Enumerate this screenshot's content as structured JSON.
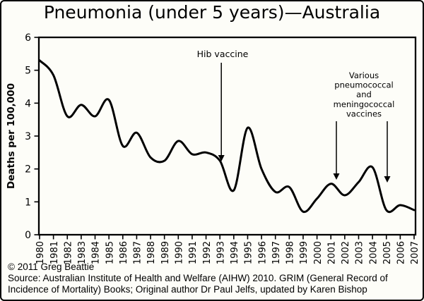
{
  "title": "Pneumonia (under 5 years)—Australia",
  "y_axis": {
    "label": "Deaths per 100,000",
    "ticks": [
      0,
      1,
      2,
      3,
      4,
      5,
      6
    ]
  },
  "annotations": {
    "hib": {
      "label": "Hib vaccine",
      "arrow_year": 1993
    },
    "various": {
      "lines": [
        "Various",
        "pneumococcal",
        "and",
        "meningococcal",
        "vaccines"
      ],
      "arrow_years": [
        2001.5,
        2005
      ]
    }
  },
  "footer": {
    "copyright": "© 2011 Greg Beattie",
    "source_lines": [
      "Source: Australian Institute of Health and Welfare (AIHW) 2010. GRIM (General Record of",
      "Incidence of Mortality) Books; Original author Dr Paul Jelfs, updated by Karen Bishop"
    ]
  },
  "colors": {
    "line": "#000000",
    "background": "#fdfdf8",
    "border": "#000000",
    "text": "#000000"
  },
  "chart_data": {
    "type": "line",
    "title": "Pneumonia (under 5 years)—Australia",
    "xlabel": "",
    "ylabel": "Deaths per 100,000",
    "x": [
      1980,
      1981,
      1982,
      1983,
      1984,
      1985,
      1986,
      1987,
      1988,
      1989,
      1990,
      1991,
      1992,
      1993,
      1994,
      1995,
      1996,
      1997,
      1998,
      1999,
      2000,
      2001,
      2002,
      2003,
      2004,
      2005,
      2006,
      2007
    ],
    "series": [
      {
        "name": "Pneumonia deaths under 5 years, Australia",
        "values": [
          5.3,
          4.85,
          3.6,
          3.95,
          3.6,
          4.1,
          2.7,
          3.1,
          2.35,
          2.25,
          2.85,
          2.45,
          2.5,
          2.25,
          1.35,
          3.25,
          2.0,
          1.3,
          1.45,
          0.7,
          1.1,
          1.55,
          1.2,
          1.6,
          2.05,
          0.75,
          0.9,
          0.75
        ]
      }
    ],
    "ylim": [
      0,
      6
    ],
    "yticks": [
      0,
      1,
      2,
      3,
      4,
      5,
      6
    ],
    "x_tick_rotation": -90,
    "grid": false,
    "legend": false,
    "smoothing": "spline",
    "annotations": [
      {
        "label": "Hib vaccine",
        "arrow_year": 1993,
        "arrow_points_to_value": 2.2
      },
      {
        "label": "Various pneumococcal and meningococcal vaccines",
        "arrow_years": [
          2001.5,
          2005
        ],
        "arrow_points_to_values": [
          1.6,
          1.5
        ]
      }
    ]
  }
}
